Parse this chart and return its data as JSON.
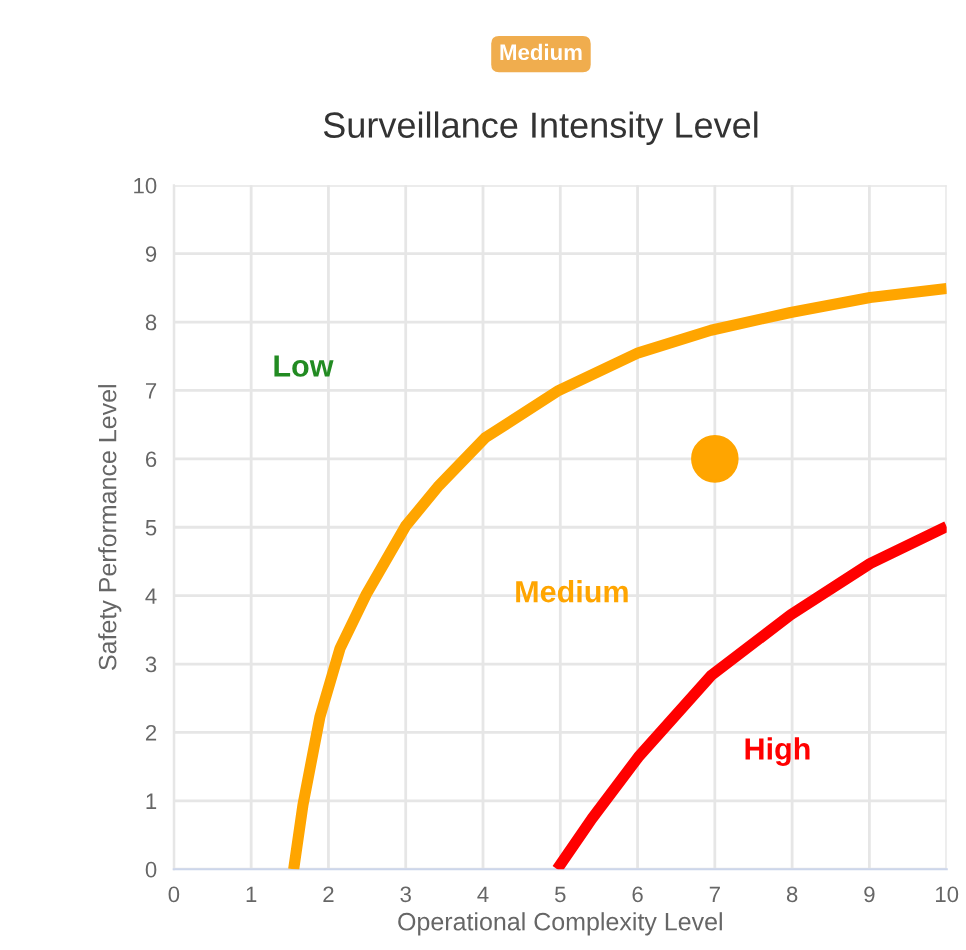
{
  "chart_data": {
    "type": "line",
    "title": "Surveillance Intensity Level",
    "subtitle": "Medium",
    "xlabel": "Operational Complexity Level",
    "ylabel": "Safety Performance Level",
    "xlim": [
      0,
      10
    ],
    "ylim": [
      0,
      10
    ],
    "xticks": [
      0,
      1,
      2,
      3,
      4,
      5,
      6,
      7,
      8,
      9,
      10
    ],
    "yticks": [
      0,
      1,
      2,
      3,
      4,
      5,
      6,
      7,
      8,
      9,
      10
    ],
    "grid": true,
    "legend": false,
    "line_style": "solid",
    "series": [
      {
        "color": "#ffa500",
        "marker": "none",
        "x": [
          1.55,
          1.67,
          1.89,
          2.15,
          2.49,
          3.0,
          3.43,
          4.03,
          4.98,
          6.01,
          6.95,
          7.98,
          9.01,
          10
        ],
        "values": [
          0,
          0.94,
          2.23,
          3.23,
          4.02,
          5.02,
          5.61,
          6.31,
          7.0,
          7.55,
          7.88,
          8.14,
          8.36,
          8.49
        ]
      },
      {
        "color": "#ff0000",
        "marker": "none",
        "x": [
          4.96,
          5.41,
          6.01,
          6.95,
          7.98,
          9.01,
          10
        ],
        "values": [
          0,
          0.74,
          1.64,
          2.83,
          3.72,
          4.47,
          5.01
        ]
      },
      {
        "type": "scatter",
        "color": "#ffa500",
        "marker": "circle",
        "x": [
          7
        ],
        "values": [
          6
        ]
      }
    ],
    "annotations": [
      "Low",
      "Medium",
      "High"
    ]
  }
}
